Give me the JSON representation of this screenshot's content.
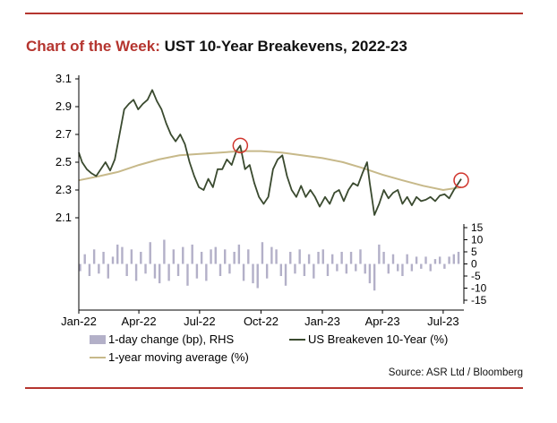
{
  "title": {
    "lead": "Chart of the Week:",
    "rest": "UST 10-Year Breakevens, 2022-23"
  },
  "source": "Source: ASR Ltd / Bloomberg",
  "legend": {
    "bars": "1-day change (bp), RHS",
    "ust": "US Breakeven 10-Year (%)",
    "ma": "1-year moving average (%)"
  },
  "colors": {
    "accent_rule": "#b5352f",
    "ust_line": "#3a4a2f",
    "moving_average": "#c7b98a",
    "bars": "#b3b0c8",
    "highlight_circle": "#d0342c"
  },
  "chart_data": {
    "type": "line",
    "x_ticks": [
      "Jan-22",
      "Apr-22",
      "Jul-22",
      "Oct-22",
      "Jan-23",
      "Apr-23",
      "Jul-23"
    ],
    "x_range": [
      "2022-01-01",
      "2023-08-01"
    ],
    "left_axis": {
      "ticks": [
        "2.1",
        "2.3",
        "2.5",
        "2.7",
        "2.9",
        "3.1"
      ],
      "ylim": [
        2.1,
        3.1
      ]
    },
    "right_axis": {
      "ticks": [
        "15",
        "10",
        "5",
        "0",
        "-5",
        "-10",
        "-15"
      ],
      "ylim": [
        -15,
        15
      ]
    },
    "grid": false,
    "series": [
      {
        "name": "US Breakeven 10-Year (%)",
        "axis": "left",
        "style": "line",
        "points": [
          [
            "2022-01-01",
            2.57
          ],
          [
            "2022-01-06",
            2.5
          ],
          [
            "2022-01-13",
            2.45
          ],
          [
            "2022-01-20",
            2.42
          ],
          [
            "2022-01-27",
            2.4
          ],
          [
            "2022-02-03",
            2.45
          ],
          [
            "2022-02-10",
            2.5
          ],
          [
            "2022-02-17",
            2.44
          ],
          [
            "2022-02-24",
            2.52
          ],
          [
            "2022-03-03",
            2.7
          ],
          [
            "2022-03-10",
            2.88
          ],
          [
            "2022-03-17",
            2.92
          ],
          [
            "2022-03-24",
            2.95
          ],
          [
            "2022-03-31",
            2.88
          ],
          [
            "2022-04-07",
            2.92
          ],
          [
            "2022-04-14",
            2.95
          ],
          [
            "2022-04-21",
            3.02
          ],
          [
            "2022-04-28",
            2.94
          ],
          [
            "2022-05-05",
            2.88
          ],
          [
            "2022-05-12",
            2.78
          ],
          [
            "2022-05-19",
            2.7
          ],
          [
            "2022-05-26",
            2.65
          ],
          [
            "2022-06-02",
            2.7
          ],
          [
            "2022-06-09",
            2.63
          ],
          [
            "2022-06-16",
            2.5
          ],
          [
            "2022-06-23",
            2.4
          ],
          [
            "2022-06-30",
            2.32
          ],
          [
            "2022-07-07",
            2.3
          ],
          [
            "2022-07-14",
            2.38
          ],
          [
            "2022-07-21",
            2.32
          ],
          [
            "2022-07-28",
            2.45
          ],
          [
            "2022-08-04",
            2.45
          ],
          [
            "2022-08-11",
            2.52
          ],
          [
            "2022-08-18",
            2.48
          ],
          [
            "2022-08-25",
            2.58
          ],
          [
            "2022-08-31",
            2.62
          ],
          [
            "2022-09-07",
            2.45
          ],
          [
            "2022-09-14",
            2.48
          ],
          [
            "2022-09-21",
            2.35
          ],
          [
            "2022-09-28",
            2.25
          ],
          [
            "2022-10-05",
            2.2
          ],
          [
            "2022-10-12",
            2.25
          ],
          [
            "2022-10-19",
            2.45
          ],
          [
            "2022-10-26",
            2.52
          ],
          [
            "2022-11-02",
            2.55
          ],
          [
            "2022-11-09",
            2.4
          ],
          [
            "2022-11-16",
            2.3
          ],
          [
            "2022-11-23",
            2.25
          ],
          [
            "2022-11-30",
            2.33
          ],
          [
            "2022-12-07",
            2.25
          ],
          [
            "2022-12-14",
            2.3
          ],
          [
            "2022-12-21",
            2.25
          ],
          [
            "2022-12-28",
            2.18
          ],
          [
            "2023-01-05",
            2.25
          ],
          [
            "2023-01-12",
            2.2
          ],
          [
            "2023-01-19",
            2.28
          ],
          [
            "2023-01-26",
            2.3
          ],
          [
            "2023-02-02",
            2.22
          ],
          [
            "2023-02-09",
            2.3
          ],
          [
            "2023-02-16",
            2.35
          ],
          [
            "2023-02-23",
            2.33
          ],
          [
            "2023-03-02",
            2.42
          ],
          [
            "2023-03-09",
            2.5
          ],
          [
            "2023-03-13",
            2.35
          ],
          [
            "2023-03-16",
            2.25
          ],
          [
            "2023-03-20",
            2.12
          ],
          [
            "2023-03-27",
            2.2
          ],
          [
            "2023-04-03",
            2.3
          ],
          [
            "2023-04-10",
            2.24
          ],
          [
            "2023-04-17",
            2.28
          ],
          [
            "2023-04-24",
            2.3
          ],
          [
            "2023-05-01",
            2.2
          ],
          [
            "2023-05-08",
            2.25
          ],
          [
            "2023-05-15",
            2.19
          ],
          [
            "2023-05-22",
            2.25
          ],
          [
            "2023-05-29",
            2.22
          ],
          [
            "2023-06-05",
            2.23
          ],
          [
            "2023-06-12",
            2.25
          ],
          [
            "2023-06-19",
            2.22
          ],
          [
            "2023-06-26",
            2.26
          ],
          [
            "2023-07-03",
            2.27
          ],
          [
            "2023-07-10",
            2.24
          ],
          [
            "2023-07-17",
            2.3
          ],
          [
            "2023-07-24",
            2.35
          ],
          [
            "2023-07-28",
            2.38
          ]
        ]
      },
      {
        "name": "1-year moving average (%)",
        "axis": "left",
        "style": "line",
        "points": [
          [
            "2022-01-01",
            2.37
          ],
          [
            "2022-02-01",
            2.4
          ],
          [
            "2022-03-01",
            2.43
          ],
          [
            "2022-04-01",
            2.48
          ],
          [
            "2022-05-01",
            2.52
          ],
          [
            "2022-06-01",
            2.55
          ],
          [
            "2022-07-01",
            2.56
          ],
          [
            "2022-08-01",
            2.57
          ],
          [
            "2022-09-01",
            2.58
          ],
          [
            "2022-10-01",
            2.58
          ],
          [
            "2022-11-01",
            2.57
          ],
          [
            "2022-12-01",
            2.55
          ],
          [
            "2023-01-01",
            2.53
          ],
          [
            "2023-02-01",
            2.5
          ],
          [
            "2023-03-01",
            2.46
          ],
          [
            "2023-04-01",
            2.41
          ],
          [
            "2023-05-01",
            2.37
          ],
          [
            "2023-06-01",
            2.33
          ],
          [
            "2023-07-01",
            2.3
          ],
          [
            "2023-07-28",
            2.32
          ]
        ]
      },
      {
        "name": "1-day change (bp), RHS",
        "axis": "right",
        "style": "bar",
        "points": [
          [
            "2022-01-03",
            -3
          ],
          [
            "2022-01-10",
            4
          ],
          [
            "2022-01-17",
            -5
          ],
          [
            "2022-01-24",
            6
          ],
          [
            "2022-01-31",
            -4
          ],
          [
            "2022-02-07",
            5
          ],
          [
            "2022-02-14",
            -6
          ],
          [
            "2022-02-21",
            3
          ],
          [
            "2022-02-28",
            8
          ],
          [
            "2022-03-07",
            7
          ],
          [
            "2022-03-14",
            -5
          ],
          [
            "2022-03-21",
            6
          ],
          [
            "2022-03-28",
            -7
          ],
          [
            "2022-04-04",
            5
          ],
          [
            "2022-04-11",
            -4
          ],
          [
            "2022-04-18",
            9
          ],
          [
            "2022-04-25",
            -6
          ],
          [
            "2022-05-02",
            -8
          ],
          [
            "2022-05-09",
            10
          ],
          [
            "2022-05-16",
            -7
          ],
          [
            "2022-05-23",
            6
          ],
          [
            "2022-05-30",
            -5
          ],
          [
            "2022-06-06",
            7
          ],
          [
            "2022-06-13",
            -9
          ],
          [
            "2022-06-20",
            8
          ],
          [
            "2022-06-27",
            -6
          ],
          [
            "2022-07-04",
            5
          ],
          [
            "2022-07-11",
            -7
          ],
          [
            "2022-07-18",
            6
          ],
          [
            "2022-07-25",
            7
          ],
          [
            "2022-08-01",
            -5
          ],
          [
            "2022-08-08",
            6
          ],
          [
            "2022-08-15",
            -4
          ],
          [
            "2022-08-22",
            5
          ],
          [
            "2022-08-29",
            8
          ],
          [
            "2022-09-05",
            -7
          ],
          [
            "2022-09-12",
            6
          ],
          [
            "2022-09-19",
            -8
          ],
          [
            "2022-09-26",
            -10
          ],
          [
            "2022-10-03",
            9
          ],
          [
            "2022-10-10",
            -6
          ],
          [
            "2022-10-17",
            7
          ],
          [
            "2022-10-24",
            6
          ],
          [
            "2022-10-31",
            -5
          ],
          [
            "2022-11-07",
            -9
          ],
          [
            "2022-11-14",
            5
          ],
          [
            "2022-11-21",
            -4
          ],
          [
            "2022-11-28",
            6
          ],
          [
            "2022-12-05",
            -5
          ],
          [
            "2022-12-12",
            4
          ],
          [
            "2022-12-19",
            -6
          ],
          [
            "2022-12-26",
            5
          ],
          [
            "2023-01-02",
            6
          ],
          [
            "2023-01-09",
            -5
          ],
          [
            "2023-01-16",
            4
          ],
          [
            "2023-01-23",
            -3
          ],
          [
            "2023-01-30",
            5
          ],
          [
            "2023-02-06",
            -4
          ],
          [
            "2023-02-13",
            5
          ],
          [
            "2023-02-20",
            -3
          ],
          [
            "2023-02-27",
            6
          ],
          [
            "2023-03-06",
            -4
          ],
          [
            "2023-03-13",
            -8
          ],
          [
            "2023-03-20",
            -11
          ],
          [
            "2023-03-27",
            8
          ],
          [
            "2023-04-03",
            5
          ],
          [
            "2023-04-10",
            -4
          ],
          [
            "2023-04-17",
            4
          ],
          [
            "2023-04-24",
            -3
          ],
          [
            "2023-05-01",
            -5
          ],
          [
            "2023-05-08",
            4
          ],
          [
            "2023-05-15",
            -3
          ],
          [
            "2023-05-22",
            3
          ],
          [
            "2023-05-29",
            -2
          ],
          [
            "2023-06-05",
            3
          ],
          [
            "2023-06-12",
            -3
          ],
          [
            "2023-06-19",
            2
          ],
          [
            "2023-06-26",
            3
          ],
          [
            "2023-07-03",
            -2
          ],
          [
            "2023-07-10",
            3
          ],
          [
            "2023-07-17",
            4
          ],
          [
            "2023-07-24",
            5
          ]
        ]
      }
    ],
    "highlights": [
      {
        "x": "2022-08-31",
        "y": 2.62
      },
      {
        "x": "2023-07-28",
        "y": 2.37
      }
    ]
  }
}
